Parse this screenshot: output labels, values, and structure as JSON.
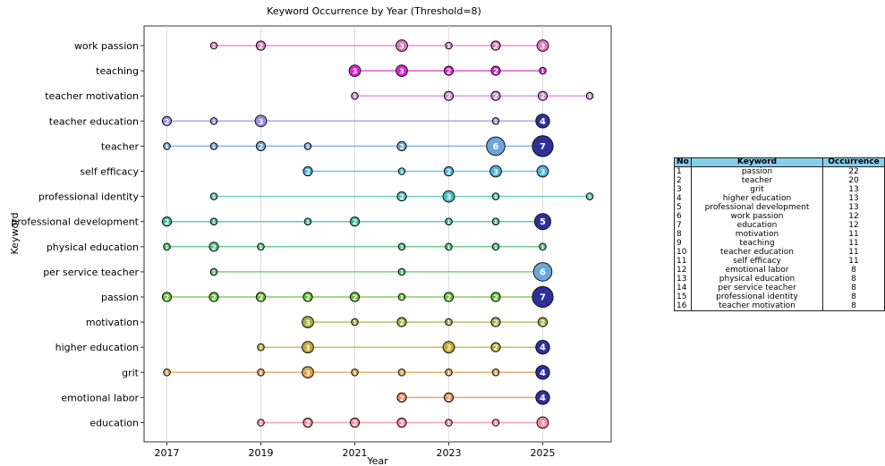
{
  "chart_data": {
    "type": "scatter",
    "title": "Keyword Occurrence by Year (Threshold=8)",
    "xlabel": "Year",
    "ylabel": "Keyword",
    "xlim": [
      2016.5,
      2026.5
    ],
    "xticks": [
      2017,
      2019,
      2021,
      2023,
      2025
    ],
    "grid": "vertical",
    "keywords": [
      "work passion",
      "teaching",
      "teacher motivation",
      "teacher education",
      "teacher",
      "self efficacy",
      "professional identity",
      "professional development",
      "physical education",
      "per service teacher",
      "passion",
      "motivation",
      "higher education",
      "grit",
      "emotional labor",
      "education"
    ],
    "series": [
      {
        "keyword": "work passion",
        "color": "#e377c2",
        "points": [
          {
            "x": 2018,
            "count": 1
          },
          {
            "x": 2019,
            "count": 2
          },
          {
            "x": 2022,
            "count": 3
          },
          {
            "x": 2023,
            "count": 1
          },
          {
            "x": 2024,
            "count": 2
          },
          {
            "x": 2025,
            "count": 3
          }
        ]
      },
      {
        "keyword": "teaching",
        "color": "#d62ad0",
        "points": [
          {
            "x": 2021,
            "count": 3
          },
          {
            "x": 2022,
            "count": 3
          },
          {
            "x": 2023,
            "count": 2
          },
          {
            "x": 2024,
            "count": 2
          },
          {
            "x": 2025,
            "count": 1
          }
        ]
      },
      {
        "keyword": "teacher motivation",
        "color": "#d97fe0",
        "points": [
          {
            "x": 2021,
            "count": 1
          },
          {
            "x": 2023,
            "count": 2
          },
          {
            "x": 2024,
            "count": 2
          },
          {
            "x": 2025,
            "count": 2
          },
          {
            "x": 2026,
            "count": 1
          }
        ]
      },
      {
        "keyword": "teacher education",
        "color": "#9b8fe0",
        "points": [
          {
            "x": 2017,
            "count": 2
          },
          {
            "x": 2018,
            "count": 1
          },
          {
            "x": 2019,
            "count": 3
          },
          {
            "x": 2024,
            "count": 1
          },
          {
            "x": 2025,
            "count": 4
          }
        ]
      },
      {
        "keyword": "teacher",
        "color": "#6aa6dc",
        "points": [
          {
            "x": 2017,
            "count": 1
          },
          {
            "x": 2018,
            "count": 1
          },
          {
            "x": 2019,
            "count": 2
          },
          {
            "x": 2020,
            "count": 1
          },
          {
            "x": 2022,
            "count": 2
          },
          {
            "x": 2024,
            "count": 6
          },
          {
            "x": 2025,
            "count": 7
          }
        ]
      },
      {
        "keyword": "self efficacy",
        "color": "#4fb0d6",
        "points": [
          {
            "x": 2020,
            "count": 2
          },
          {
            "x": 2022,
            "count": 1
          },
          {
            "x": 2023,
            "count": 2
          },
          {
            "x": 2024,
            "count": 3
          },
          {
            "x": 2025,
            "count": 3
          }
        ]
      },
      {
        "keyword": "professional identity",
        "color": "#4bbfbf",
        "points": [
          {
            "x": 2018,
            "count": 1
          },
          {
            "x": 2022,
            "count": 2
          },
          {
            "x": 2023,
            "count": 3
          },
          {
            "x": 2024,
            "count": 1
          },
          {
            "x": 2026,
            "count": 1
          }
        ]
      },
      {
        "keyword": "professional development",
        "color": "#3fb8a4",
        "points": [
          {
            "x": 2017,
            "count": 2
          },
          {
            "x": 2018,
            "count": 1
          },
          {
            "x": 2020,
            "count": 1
          },
          {
            "x": 2021,
            "count": 2
          },
          {
            "x": 2023,
            "count": 1
          },
          {
            "x": 2024,
            "count": 1
          },
          {
            "x": 2025,
            "count": 5
          }
        ]
      },
      {
        "keyword": "physical education",
        "color": "#4fbf7f",
        "points": [
          {
            "x": 2017,
            "count": 1
          },
          {
            "x": 2018,
            "count": 2
          },
          {
            "x": 2019,
            "count": 1
          },
          {
            "x": 2022,
            "count": 1
          },
          {
            "x": 2023,
            "count": 1
          },
          {
            "x": 2024,
            "count": 1
          },
          {
            "x": 2025,
            "count": 1
          }
        ]
      },
      {
        "keyword": "per service teacher",
        "color": "#55c066",
        "points": [
          {
            "x": 2018,
            "count": 1
          },
          {
            "x": 2022,
            "count": 1
          },
          {
            "x": 2025,
            "count": 6
          }
        ]
      },
      {
        "keyword": "passion",
        "color": "#6cbf3a",
        "points": [
          {
            "x": 2017,
            "count": 2
          },
          {
            "x": 2018,
            "count": 2
          },
          {
            "x": 2019,
            "count": 2
          },
          {
            "x": 2020,
            "count": 2
          },
          {
            "x": 2021,
            "count": 2
          },
          {
            "x": 2022,
            "count": 1
          },
          {
            "x": 2023,
            "count": 2
          },
          {
            "x": 2024,
            "count": 2
          },
          {
            "x": 2025,
            "count": 7
          }
        ]
      },
      {
        "keyword": "motivation",
        "color": "#a7ae3c",
        "points": [
          {
            "x": 2020,
            "count": 3
          },
          {
            "x": 2021,
            "count": 1
          },
          {
            "x": 2022,
            "count": 2
          },
          {
            "x": 2023,
            "count": 1
          },
          {
            "x": 2024,
            "count": 2
          },
          {
            "x": 2025,
            "count": 2
          }
        ]
      },
      {
        "keyword": "higher education",
        "color": "#c2a93e",
        "points": [
          {
            "x": 2019,
            "count": 1
          },
          {
            "x": 2020,
            "count": 3
          },
          {
            "x": 2023,
            "count": 3
          },
          {
            "x": 2024,
            "count": 2
          },
          {
            "x": 2025,
            "count": 4
          }
        ]
      },
      {
        "keyword": "grit",
        "color": "#e0a04a",
        "points": [
          {
            "x": 2017,
            "count": 1
          },
          {
            "x": 2019,
            "count": 1
          },
          {
            "x": 2020,
            "count": 3
          },
          {
            "x": 2021,
            "count": 1
          },
          {
            "x": 2022,
            "count": 1
          },
          {
            "x": 2023,
            "count": 1
          },
          {
            "x": 2024,
            "count": 1
          },
          {
            "x": 2025,
            "count": 4
          }
        ]
      },
      {
        "keyword": "emotional labor",
        "color": "#ee8a4e",
        "points": [
          {
            "x": 2022,
            "count": 2
          },
          {
            "x": 2023,
            "count": 2
          },
          {
            "x": 2025,
            "count": 4
          }
        ]
      },
      {
        "keyword": "education",
        "color": "#f08a9c",
        "points": [
          {
            "x": 2019,
            "count": 1
          },
          {
            "x": 2020,
            "count": 2
          },
          {
            "x": 2021,
            "count": 2
          },
          {
            "x": 2022,
            "count": 2
          },
          {
            "x": 2023,
            "count": 1
          },
          {
            "x": 2024,
            "count": 1
          },
          {
            "x": 2025,
            "count": 3
          }
        ]
      }
    ]
  },
  "table": {
    "headers": [
      "No",
      "Keyword",
      "Occurrence"
    ],
    "rows": [
      [
        "1",
        "passion",
        "22"
      ],
      [
        "2",
        "teacher",
        "20"
      ],
      [
        "3",
        "grit",
        "13"
      ],
      [
        "4",
        "higher education",
        "13"
      ],
      [
        "5",
        "professional development",
        "13"
      ],
      [
        "6",
        "work passion",
        "12"
      ],
      [
        "7",
        "education",
        "12"
      ],
      [
        "8",
        "motivation",
        "11"
      ],
      [
        "9",
        "teaching",
        "11"
      ],
      [
        "10",
        "teacher education",
        "11"
      ],
      [
        "11",
        "self efficacy",
        "11"
      ],
      [
        "12",
        "emotional labor",
        "8"
      ],
      [
        "13",
        "physical education",
        "8"
      ],
      [
        "14",
        "per service teacher",
        "8"
      ],
      [
        "15",
        "professional identity",
        "8"
      ],
      [
        "16",
        "teacher motivation",
        "8"
      ]
    ]
  },
  "colors": {
    "header_bg": "#87CEEB",
    "dark_fill": "#2f2f9a"
  }
}
